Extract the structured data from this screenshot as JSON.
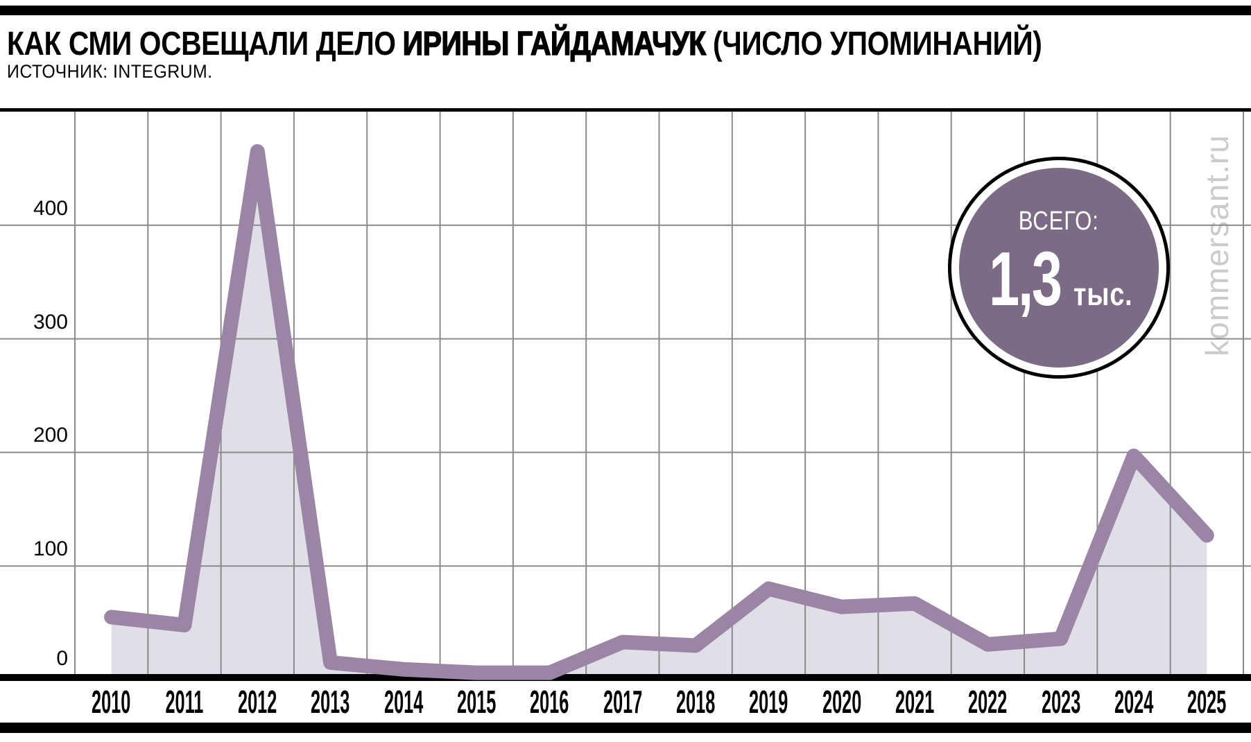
{
  "header": {
    "title_regular": "КАК СМИ ОСВЕЩАЛИ ДЕЛО",
    "title_emphasis": "ИРИНЫ ГАЙДАМАЧУК",
    "title_suffix": "(ЧИСЛО УПОМИНАНИЙ)",
    "source": "ИСТОЧНИК: INTEGRUM."
  },
  "badge": {
    "label": "ВСЕГО:",
    "value": "1,3",
    "unit": "тыс."
  },
  "watermark": "kommersant.ru",
  "colors": {
    "line": "#9b85a4",
    "area_fill": "#e0dfe7",
    "grid": "#8a8a8a",
    "badge_fill": "#7b6b85",
    "watermark": "#cbcbcb",
    "frame": "#000000"
  },
  "chart_data": {
    "type": "area",
    "title": "КАК СМИ ОСВЕЩАЛИ ДЕЛО ИРИНЫ ГАЙДАМАЧУК (ЧИСЛО УПОМИНАНИЙ)",
    "source": "ИСТОЧНИК: INTEGRUM.",
    "x": [
      2010,
      2011,
      2012,
      2013,
      2014,
      2015,
      2016,
      2017,
      2018,
      2019,
      2020,
      2021,
      2022,
      2023,
      2024,
      2025
    ],
    "values": [
      55,
      48,
      465,
      15,
      9,
      6,
      6,
      33,
      30,
      80,
      64,
      67,
      31,
      36,
      197,
      127
    ],
    "total_annotation": "ВСЕГО: 1,3 тыс.",
    "xlabel": "",
    "ylabel": "",
    "ylim": [
      0,
      500
    ],
    "yticks": [
      0,
      100,
      200,
      300,
      400
    ],
    "grid": true,
    "legend": "none"
  }
}
